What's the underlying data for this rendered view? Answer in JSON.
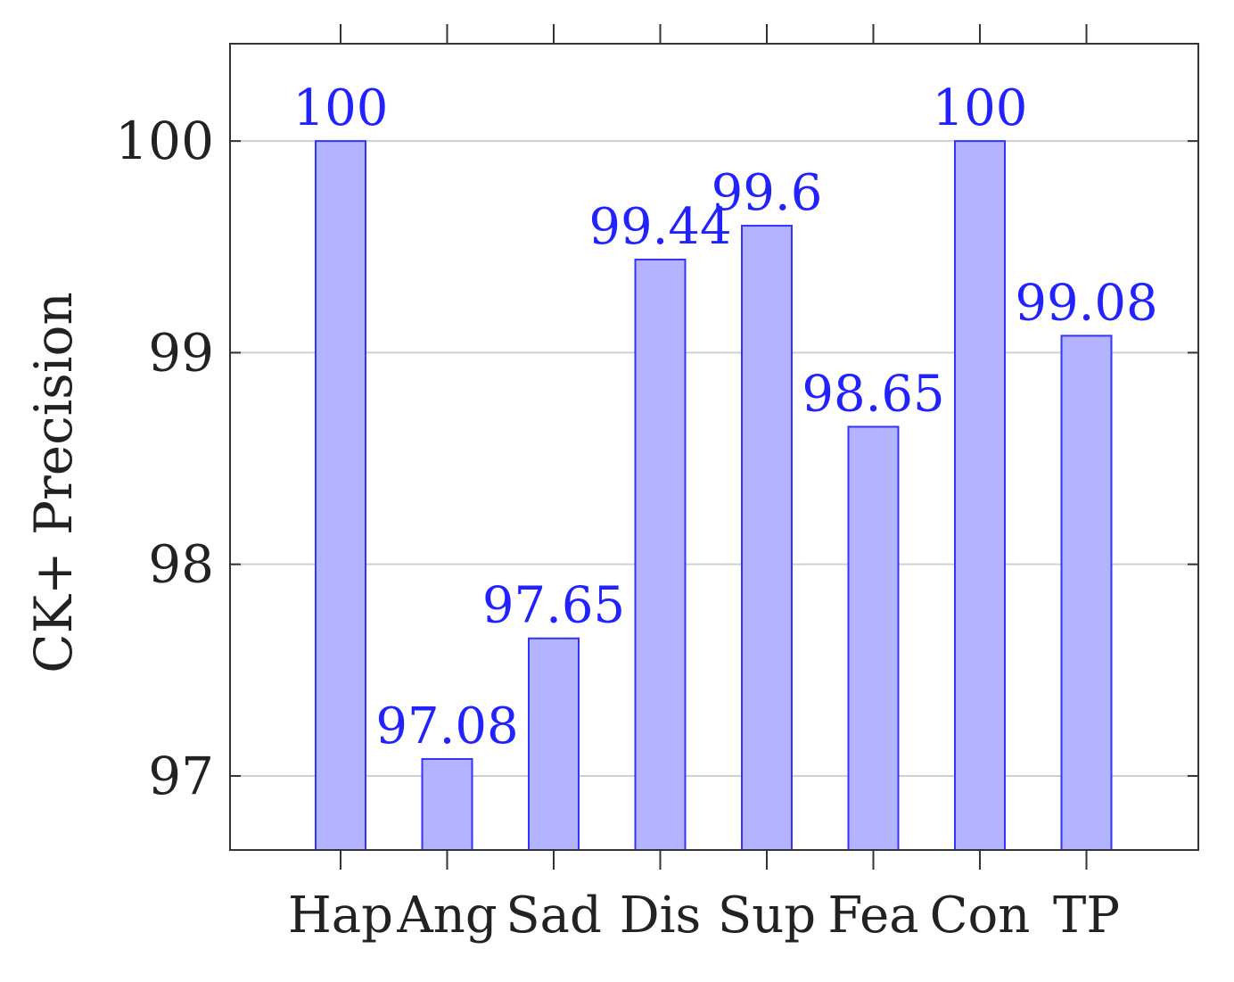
{
  "chart_data": {
    "type": "bar",
    "title": "",
    "xlabel": "",
    "ylabel": "CK+ Precision",
    "categories": [
      "Hap",
      "Ang",
      "Sad",
      "Dis",
      "Sup",
      "Fea",
      "Con",
      "TP"
    ],
    "series": [
      {
        "values": [
          100,
          97.08,
          97.65,
          99.44,
          99.6,
          98.65,
          100,
          99.08
        ],
        "labels": [
          "100",
          "97.08",
          "97.65",
          "99.44",
          "99.6",
          "98.65",
          "100",
          "99.08"
        ]
      }
    ],
    "ylim": [
      96.65,
      100.46
    ],
    "yticks": [
      97,
      98,
      99,
      100
    ],
    "ytick_labels": [
      "97",
      "98",
      "99",
      "100"
    ],
    "grid": "horizontal",
    "colors": {
      "bar_fill": "#b3b3ff",
      "bar_stroke": "#3333ff",
      "data_label": "#2222ff",
      "grid": "#d0d0d0",
      "axis": "#333333"
    }
  }
}
